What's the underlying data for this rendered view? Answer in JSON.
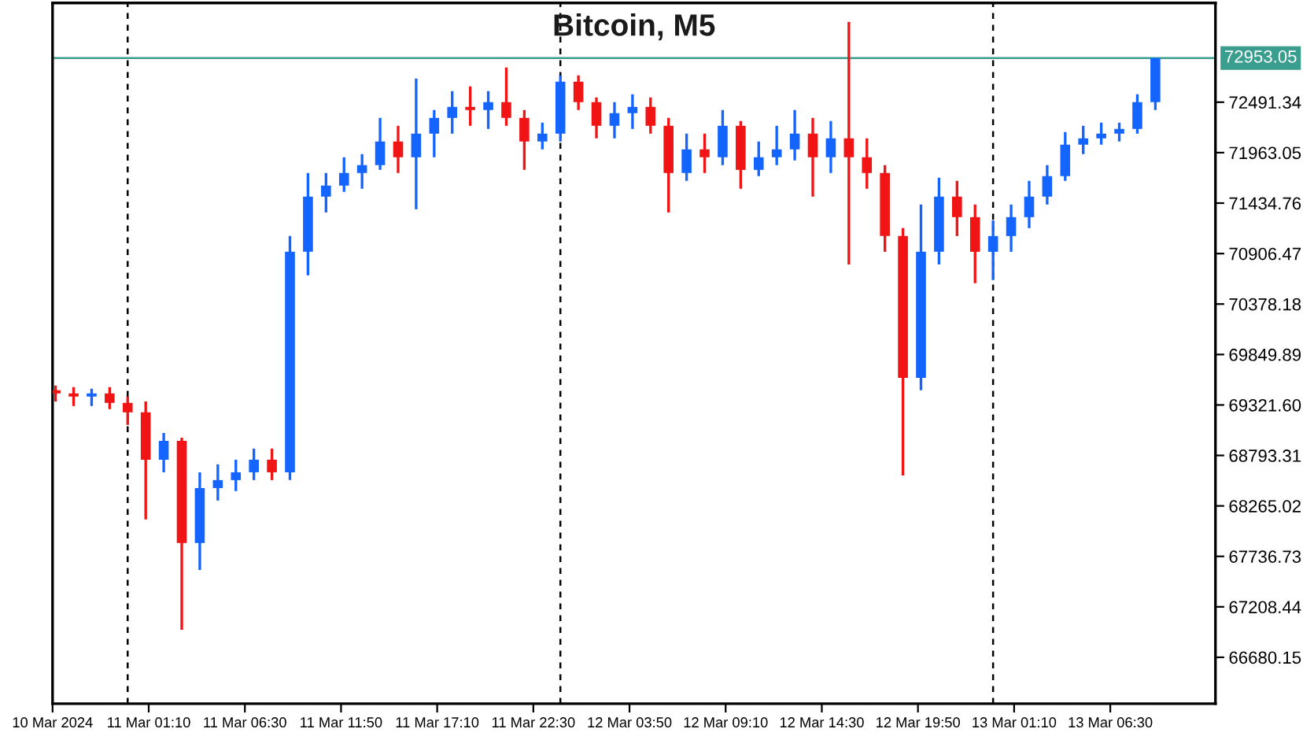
{
  "chart_data": {
    "type": "candlestick",
    "title": "Bitcoin, M5",
    "x": [
      "2024-03-10T20:00",
      "2024-03-10T21:00",
      "2024-03-10T22:00",
      "2024-03-10T23:00",
      "2024-03-11T00:00",
      "2024-03-11T01:00",
      "2024-03-11T02:00",
      "2024-03-11T03:00",
      "2024-03-11T04:00",
      "2024-03-11T05:00",
      "2024-03-11T06:00",
      "2024-03-11T07:00",
      "2024-03-11T08:00",
      "2024-03-11T09:00",
      "2024-03-11T10:00",
      "2024-03-11T11:00",
      "2024-03-11T12:00",
      "2024-03-11T13:00",
      "2024-03-11T14:00",
      "2024-03-11T15:00",
      "2024-03-11T16:00",
      "2024-03-11T17:00",
      "2024-03-11T18:00",
      "2024-03-11T19:00",
      "2024-03-11T20:00",
      "2024-03-11T21:00",
      "2024-03-11T22:00",
      "2024-03-11T23:00",
      "2024-03-12T00:00",
      "2024-03-12T01:00",
      "2024-03-12T02:00",
      "2024-03-12T03:00",
      "2024-03-12T04:00",
      "2024-03-12T05:00",
      "2024-03-12T06:00",
      "2024-03-12T07:00",
      "2024-03-12T08:00",
      "2024-03-12T09:00",
      "2024-03-12T10:00",
      "2024-03-12T11:00",
      "2024-03-12T12:00",
      "2024-03-12T13:00",
      "2024-03-12T14:00",
      "2024-03-12T15:00",
      "2024-03-12T16:00",
      "2024-03-12T17:00",
      "2024-03-12T18:00",
      "2024-03-12T19:00",
      "2024-03-12T20:00",
      "2024-03-12T21:00",
      "2024-03-12T22:00",
      "2024-03-12T23:00",
      "2024-03-13T00:00",
      "2024-03-13T01:00",
      "2024-03-13T02:00",
      "2024-03-13T03:00",
      "2024-03-13T04:00",
      "2024-03-13T05:00",
      "2024-03-13T06:00",
      "2024-03-13T07:00",
      "2024-03-13T08:00",
      "2024-03-13T09:00"
    ],
    "ohlc": [
      [
        69475,
        69524,
        69359,
        69442
      ],
      [
        69442,
        69508,
        69310,
        69409
      ],
      [
        69409,
        69491,
        69310,
        69442
      ],
      [
        69442,
        69508,
        69277,
        69343
      ],
      [
        69343,
        69409,
        69112,
        69244
      ],
      [
        69244,
        69359,
        68123,
        68749
      ],
      [
        68749,
        69029,
        68617,
        68947
      ],
      [
        68947,
        68980,
        66969,
        67876
      ],
      [
        67876,
        68617,
        67595,
        68452
      ],
      [
        68452,
        68700,
        68321,
        68535
      ],
      [
        68535,
        68749,
        68420,
        68617
      ],
      [
        68617,
        68865,
        68535,
        68749
      ],
      [
        68749,
        68865,
        68535,
        68617
      ],
      [
        68617,
        71090,
        68535,
        70925
      ],
      [
        70925,
        71750,
        70678,
        71502
      ],
      [
        71502,
        71750,
        71337,
        71618
      ],
      [
        71618,
        71914,
        71552,
        71750
      ],
      [
        71750,
        71947,
        71585,
        71832
      ],
      [
        71832,
        72326,
        71783,
        72079
      ],
      [
        72079,
        72244,
        71750,
        71914
      ],
      [
        71914,
        72739,
        71370,
        72162
      ],
      [
        72162,
        72409,
        71914,
        72326
      ],
      [
        72326,
        72607,
        72162,
        72442
      ],
      [
        72442,
        72656,
        72244,
        72409
      ],
      [
        72409,
        72607,
        72211,
        72491
      ],
      [
        72491,
        72854,
        72244,
        72326
      ],
      [
        72326,
        72409,
        71783,
        72079
      ],
      [
        72079,
        72277,
        71997,
        72162
      ],
      [
        72162,
        72772,
        72079,
        72706
      ],
      [
        72706,
        72772,
        72409,
        72491
      ],
      [
        72491,
        72541,
        72112,
        72244
      ],
      [
        72244,
        72491,
        72112,
        72376
      ],
      [
        72376,
        72574,
        72211,
        72442
      ],
      [
        72442,
        72541,
        72162,
        72244
      ],
      [
        72244,
        72326,
        71337,
        71750
      ],
      [
        71750,
        72162,
        71667,
        71997
      ],
      [
        71997,
        72162,
        71750,
        71914
      ],
      [
        71914,
        72409,
        71832,
        72244
      ],
      [
        72244,
        72294,
        71585,
        71783
      ],
      [
        71783,
        72079,
        71717,
        71914
      ],
      [
        71914,
        72244,
        71832,
        71997
      ],
      [
        71997,
        72409,
        71881,
        72162
      ],
      [
        72162,
        72326,
        71502,
        71914
      ],
      [
        71914,
        72294,
        71750,
        72112
      ],
      [
        72112,
        73332,
        70793,
        71914
      ],
      [
        71914,
        72112,
        71585,
        71750
      ],
      [
        71750,
        71832,
        70925,
        71090
      ],
      [
        71090,
        71173,
        68584,
        69606
      ],
      [
        69606,
        71420,
        69475,
        70925
      ],
      [
        70925,
        71700,
        70793,
        71502
      ],
      [
        71502,
        71667,
        71090,
        71288
      ],
      [
        71288,
        71420,
        70596,
        70925
      ],
      [
        70925,
        71255,
        70629,
        71090
      ],
      [
        71090,
        71420,
        70925,
        71288
      ],
      [
        71288,
        71667,
        71173,
        71502
      ],
      [
        71502,
        71832,
        71420,
        71717
      ],
      [
        71717,
        72178,
        71667,
        72046
      ],
      [
        72046,
        72244,
        71947,
        72112
      ],
      [
        72112,
        72277,
        72046,
        72162
      ],
      [
        72162,
        72277,
        72079,
        72211
      ],
      [
        72211,
        72574,
        72162,
        72491
      ],
      [
        72491,
        72953.05,
        72409,
        72953.05
      ]
    ],
    "colors": [
      "#f01414",
      "#f01414",
      "#1464ff",
      "#f01414",
      "#f01414",
      "#f01414",
      "#1464ff",
      "#f01414",
      "#1464ff",
      "#1464ff",
      "#1464ff",
      "#1464ff",
      "#f01414",
      "#1464ff",
      "#1464ff",
      "#1464ff",
      "#1464ff",
      "#1464ff",
      "#1464ff",
      "#f01414",
      "#1464ff",
      "#1464ff",
      "#1464ff",
      "#f01414",
      "#1464ff",
      "#f01414",
      "#f01414",
      "#1464ff",
      "#1464ff",
      "#f01414",
      "#f01414",
      "#1464ff",
      "#1464ff",
      "#f01414",
      "#f01414",
      "#1464ff",
      "#f01414",
      "#1464ff",
      "#f01414",
      "#1464ff",
      "#1464ff",
      "#1464ff",
      "#f01414",
      "#1464ff",
      "#f01414",
      "#f01414",
      "#f01414",
      "#f01414",
      "#1464ff",
      "#1464ff",
      "#f01414",
      "#f01414",
      "#1464ff",
      "#1464ff",
      "#1464ff",
      "#1464ff",
      "#1464ff",
      "#1464ff",
      "#1464ff",
      "#1464ff",
      "#1464ff",
      "#1464ff"
    ],
    "xlim": [
      "2024-03-10T19:50",
      "2024-03-13T12:20"
    ],
    "xticks": [
      {
        "value": "2024-03-10T19:50",
        "label": "10 Mar 2024"
      },
      {
        "value": "2024-03-11T01:10",
        "label": "11 Mar 01:10"
      },
      {
        "value": "2024-03-11T06:30",
        "label": "11 Mar 06:30"
      },
      {
        "value": "2024-03-11T11:50",
        "label": "11 Mar 11:50"
      },
      {
        "value": "2024-03-11T17:10",
        "label": "11 Mar 17:10"
      },
      {
        "value": "2024-03-11T22:30",
        "label": "11 Mar 22:30"
      },
      {
        "value": "2024-03-12T03:50",
        "label": "12 Mar 03:50"
      },
      {
        "value": "2024-03-12T09:10",
        "label": "12 Mar 09:10"
      },
      {
        "value": "2024-03-12T14:30",
        "label": "12 Mar 14:30"
      },
      {
        "value": "2024-03-12T19:50",
        "label": "12 Mar 19:50"
      },
      {
        "value": "2024-03-13T01:10",
        "label": "13 Mar 01:10"
      },
      {
        "value": "2024-03-13T06:30",
        "label": "13 Mar 06:30"
      }
    ],
    "ylim": [
      66194,
      73530
    ],
    "yticks": [
      66680.15,
      67208.44,
      67736.73,
      68265.02,
      68793.31,
      {
        "value": 69321.6,
        "label": "69321.60"
      },
      69849.89,
      70378.18,
      70906.47,
      71434.76,
      71963.05,
      72491.34
    ],
    "ref_lines": [
      {
        "axis": "x",
        "value": "2024-03-11T00:00",
        "label": null,
        "color": "#000000",
        "line_style": "dashed"
      },
      {
        "axis": "x",
        "value": "2024-03-12T00:00",
        "label": null,
        "color": "#000000",
        "line_style": "dashed"
      },
      {
        "axis": "x",
        "value": "2024-03-13T00:00",
        "label": null,
        "color": "#000000",
        "line_style": "dashed"
      },
      {
        "axis": "y",
        "value": 72953.05,
        "label": "72953.05",
        "color": "#3a9e8f",
        "line_style": "solid"
      }
    ],
    "grid": false,
    "legend": false
  }
}
